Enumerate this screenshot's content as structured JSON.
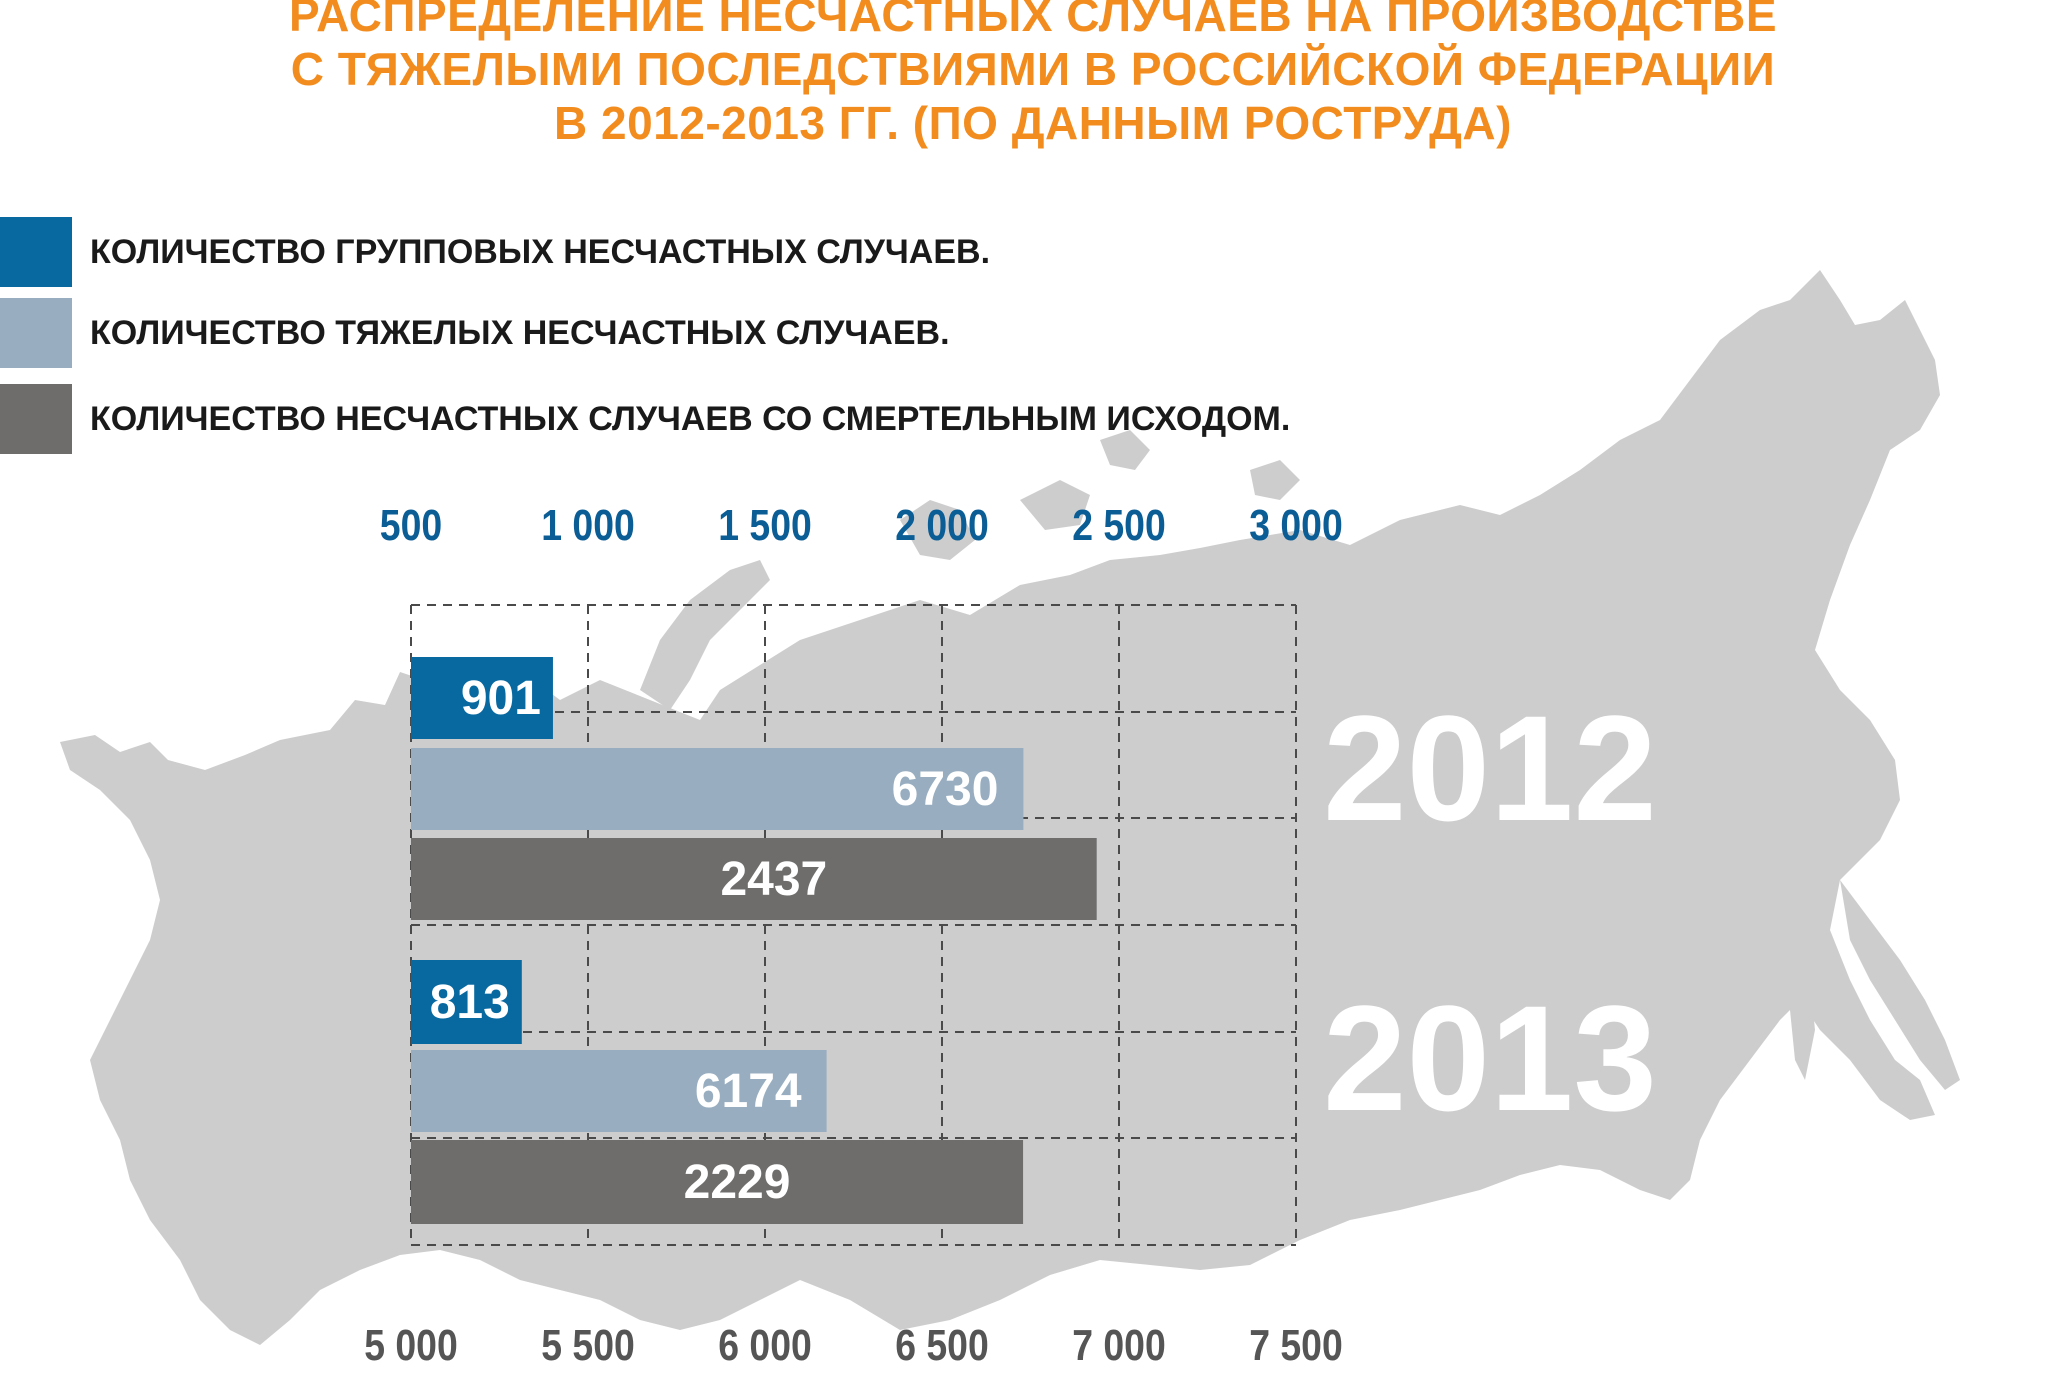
{
  "title_lines": [
    "РАСПРЕДЕЛЕНИЕ НЕСЧАСТНЫХ СЛУЧАЕВ НА ПРОИЗВОДСТВЕ",
    "С ТЯЖЕЛЫМИ ПОСЛЕДСТВИЯМИ В РОССИЙСКОЙ ФЕДЕРАЦИИ",
    "В 2012-2013 ГГ. (ПО ДАННЫМ РОСТРУДА)"
  ],
  "colors": {
    "title": "#f28c1e",
    "group": "#0868a0",
    "heavy": "#98aec0",
    "fatal": "#6e6d6c",
    "top_axis": "#0b5d95",
    "bottom_axis": "#555555",
    "map": "#cdcdcd"
  },
  "legend": [
    {
      "key": "group",
      "label": "КОЛИЧЕСТВО ГРУППОВЫХ НЕСЧАСТНЫХ СЛУЧАЕВ."
    },
    {
      "key": "heavy",
      "label": "КОЛИЧЕСТВО ТЯЖЕЛЫХ НЕСЧАСТНЫХ СЛУЧАЕВ."
    },
    {
      "key": "fatal",
      "label": "КОЛИЧЕСТВО НЕСЧАСТНЫХ СЛУЧАЕВ СО СМЕРТЕЛЬНЫМ ИСХОДОМ."
    }
  ],
  "chart_data": {
    "type": "bar",
    "orientation": "horizontal",
    "background": "map of Russian Federation (grey silhouette)",
    "grid": true,
    "grid_style": "dashed",
    "top_axis": {
      "ticks": [
        500,
        1000,
        1500,
        2000,
        2500,
        3000
      ],
      "tick_labels": [
        "500",
        "1 000",
        "1 500",
        "2 000",
        "2 500",
        "3 000"
      ],
      "range": [
        500,
        3000
      ],
      "applies_to": [
        "group",
        "fatal"
      ]
    },
    "bottom_axis": {
      "ticks": [
        5000,
        5500,
        6000,
        6500,
        7000,
        7500
      ],
      "tick_labels": [
        "5 000",
        "5 500",
        "6 000",
        "6 500",
        "7 000",
        "7 500"
      ],
      "range": [
        5000,
        7500
      ],
      "applies_to": [
        "heavy"
      ]
    },
    "groups": [
      {
        "year": "2012",
        "bars": [
          {
            "key": "group",
            "value": 901,
            "label": "901"
          },
          {
            "key": "heavy",
            "value": 6730,
            "label": "6730"
          },
          {
            "key": "fatal",
            "value": 2437,
            "label": "2437"
          }
        ]
      },
      {
        "year": "2013",
        "bars": [
          {
            "key": "group",
            "value": 813,
            "label": "813"
          },
          {
            "key": "heavy",
            "value": 6174,
            "label": "6174"
          },
          {
            "key": "fatal",
            "value": 2229,
            "label": "2229"
          }
        ]
      }
    ]
  }
}
